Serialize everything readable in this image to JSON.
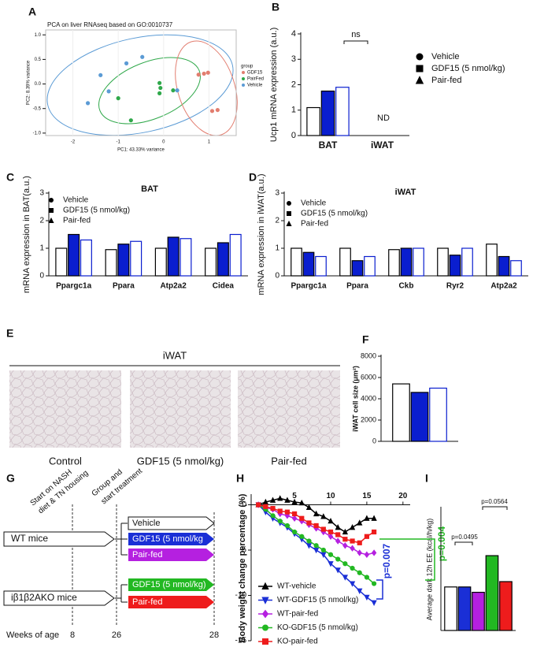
{
  "panel_labels": [
    "A",
    "B",
    "C",
    "D",
    "E",
    "F",
    "G",
    "H",
    "I"
  ],
  "chart_data": [
    {
      "type": "scatter",
      "title": "PCA on liver RNAseq based on GO:0010737",
      "xlabel": "PC1: 43.33% variance",
      "ylabel": "PC2: 8.39% variance",
      "xlim": [
        -2.6,
        1.6
      ],
      "ylim": [
        -1.05,
        1.1
      ],
      "xticks": [
        -2,
        -1,
        0,
        1
      ],
      "yticks": [
        {
          "value": 1,
          "label": "1.0"
        },
        0.5,
        {
          "value": 0,
          "label": "0.0"
        },
        -0.5,
        {
          "value": -1,
          "label": "-1.0"
        }
      ],
      "legend_title": "group",
      "series": [
        {
          "name": "GDF15",
          "color": "#e27d6f",
          "x": [
            0.77,
            0.89,
            0.98,
            1.07,
            1.19
          ],
          "values": [
            0.19,
            0.21,
            0.23,
            -0.55,
            -0.53
          ]
        },
        {
          "name": "PairFed",
          "color": "#2fa84a",
          "x": [
            -0.09,
            -0.07,
            -0.09,
            -1.0,
            -0.72,
            0.21
          ],
          "values": [
            0.02,
            -0.08,
            -0.19,
            -0.29,
            -0.74,
            -0.13
          ]
        },
        {
          "name": "Vehicle",
          "color": "#5b9bd5",
          "x": [
            -0.82,
            -0.47,
            -1.39,
            -1.67,
            -1.21,
            0.3
          ],
          "values": [
            0.42,
            0.55,
            0.18,
            -0.39,
            -0.15,
            -0.13
          ]
        }
      ]
    },
    {
      "type": "bar",
      "ylabel": "Ucp1 mRNA expression (a.u.)",
      "categories": [
        "BAT",
        "iWAT"
      ],
      "ylim": [
        0,
        4
      ],
      "yticks": [
        0,
        1,
        2,
        3,
        4
      ],
      "annotations": [
        "ns",
        "ND"
      ],
      "series": [
        {
          "name": "Vehicle",
          "color": "#ffffff",
          "edgecolor": "#000000",
          "marker": "circle",
          "values": [
            1.1,
            0
          ]
        },
        {
          "name": "GDF15 (5 nmol/kg)",
          "color": "#0a1ecf",
          "edgecolor": "#000000",
          "marker": "square",
          "values": [
            1.75,
            0
          ]
        },
        {
          "name": "Pair-fed",
          "color": "#ffffff",
          "edgecolor": "#0a1ecf",
          "marker": "triangle",
          "values": [
            1.9,
            0
          ]
        }
      ]
    },
    {
      "type": "bar",
      "title": "BAT",
      "ylabel": "mRNA expression in BAT(a.u.)",
      "categories": [
        "Ppargc1a",
        "Ppara",
        "Atp2a2",
        "Cidea"
      ],
      "ylim": [
        0,
        3
      ],
      "yticks": [
        0,
        1,
        2,
        3
      ],
      "series": [
        {
          "name": "Vehicle",
          "color": "#ffffff",
          "edgecolor": "#000000",
          "marker": "circle",
          "values": [
            1.0,
            0.95,
            1.0,
            1.0
          ]
        },
        {
          "name": "GDF15 (5 nmol/kg)",
          "color": "#0a1ecf",
          "edgecolor": "#000000",
          "marker": "square",
          "values": [
            1.5,
            1.15,
            1.4,
            1.2
          ]
        },
        {
          "name": "Pair-fed",
          "color": "#ffffff",
          "edgecolor": "#0a1ecf",
          "marker": "triangle",
          "values": [
            1.3,
            1.25,
            1.35,
            1.5
          ]
        }
      ]
    },
    {
      "type": "bar",
      "title": "iWAT",
      "ylabel": "mRNA expression in iWAT(a.u.)",
      "categories": [
        "Ppargc1a",
        "Ppara",
        "Ckb",
        "Ryr2",
        "Atp2a2"
      ],
      "ylim": [
        0,
        3
      ],
      "yticks": [
        0,
        1,
        2,
        3
      ],
      "series": [
        {
          "name": "Vehicle",
          "color": "#ffffff",
          "edgecolor": "#000000",
          "marker": "circle",
          "values": [
            1.0,
            1.0,
            0.95,
            1.0,
            1.15
          ]
        },
        {
          "name": "GDF15 (5 nmol/kg)",
          "color": "#0a1ecf",
          "edgecolor": "#000000",
          "marker": "square",
          "values": [
            0.85,
            0.55,
            1.0,
            0.75,
            0.7
          ]
        },
        {
          "name": "Pair-fed",
          "color": "#ffffff",
          "edgecolor": "#0a1ecf",
          "marker": "triangle",
          "values": [
            0.7,
            0.7,
            1.0,
            1.0,
            0.55
          ]
        }
      ]
    },
    {
      "type": "bar",
      "ylabel": "iWAT cell size (μm²)",
      "categories": [
        null
      ],
      "ylim": [
        0,
        8000
      ],
      "yticks": [
        0,
        2000,
        4000,
        6000,
        8000
      ],
      "series": [
        {
          "name": null,
          "color": "#ffffff",
          "edgecolor": "#000000",
          "marker": "circle",
          "values": [
            5400
          ]
        },
        {
          "name": null,
          "color": "#0a1ecf",
          "edgecolor": "#000000",
          "marker": "square",
          "values": [
            4600
          ]
        },
        {
          "name": null,
          "color": "#ffffff",
          "edgecolor": "#0a1ecf",
          "marker": "triangle",
          "values": [
            5000
          ]
        }
      ]
    },
    {
      "type": "line",
      "ylabel": "Body weight change percentage (%)",
      "xlim": [
        -1,
        21
      ],
      "ylim": [
        -15,
        1
      ],
      "xticks": [
        5,
        10,
        15,
        20
      ],
      "yticks": [
        0,
        -5,
        -10,
        -15
      ],
      "x": [
        0,
        1,
        2,
        3,
        4,
        5,
        6,
        7,
        8,
        9,
        10,
        11,
        12,
        13,
        14,
        15,
        16
      ],
      "annotations": [
        "p=0.007",
        "p=0.004"
      ],
      "annotation_colors": [
        "#1a2fd6",
        "#22b822"
      ],
      "series": [
        {
          "name": "WT-vehicle",
          "color": "#000000",
          "marker": "triangle",
          "values": [
            0,
            0.3,
            0.5,
            0.7,
            0.5,
            0.3,
            0.2,
            -0.3,
            -1,
            -1.3,
            -1.8,
            -2.5,
            -3,
            -2.5,
            -2,
            -1.5,
            -1.5
          ]
        },
        {
          "name": "WT-GDF15 (5 nmol/kg)",
          "color": "#1a2fd6",
          "marker": "triangle-down",
          "values": [
            0,
            -0.8,
            -1.5,
            -2,
            -2.5,
            -3.2,
            -3.8,
            -4.5,
            -5,
            -5.5,
            -6.5,
            -7.2,
            -8,
            -8.7,
            -9.5,
            -10.2,
            -10.8
          ]
        },
        {
          "name": "WT-pair-fed",
          "color": "#b520e0",
          "marker": "diamond",
          "values": [
            0,
            -0.3,
            -0.5,
            -1,
            -1.2,
            -1.5,
            -1.8,
            -2.2,
            -2.6,
            -3,
            -3.5,
            -4,
            -4.5,
            -4.8,
            -5.3,
            -5.5,
            -5.3
          ]
        },
        {
          "name": "KO-GDF15 (5 nmol/kg)",
          "color": "#22b822",
          "marker": "circle",
          "values": [
            0,
            -0.5,
            -1.2,
            -1.8,
            -2.3,
            -3,
            -3.5,
            -4,
            -4.5,
            -5,
            -5.5,
            -6,
            -6.5,
            -7,
            -7.5,
            -8,
            -8.7
          ]
        },
        {
          "name": "KO-pair-fed",
          "color": "#ee1c1c",
          "marker": "square",
          "values": [
            0,
            -0.2,
            -0.4,
            -0.7,
            -0.8,
            -1,
            -1.5,
            -2,
            -2.3,
            -2.7,
            -3,
            -3.3,
            -3.8,
            -4,
            -4.2,
            -3.5,
            -3
          ]
        }
      ]
    },
    {
      "type": "bar",
      "ylabel": "Average dark 12h EE (kcal/h/kg)",
      "categories": [
        null
      ],
      "ylim": [
        0,
        16
      ],
      "annotations": [
        "p=0.0495",
        "p=0.0564"
      ],
      "series": [
        {
          "name": null,
          "color": "#ffffff",
          "edgecolor": "#000000",
          "marker": "circle",
          "values": [
            5.7
          ]
        },
        {
          "name": null,
          "color": "#1a2fd6",
          "edgecolor": "#000000",
          "marker": "circle",
          "values": [
            5.7
          ]
        },
        {
          "name": null,
          "color": "#b520e0",
          "edgecolor": "#000000",
          "marker": "circle",
          "values": [
            5.0
          ]
        },
        {
          "name": null,
          "color": "#22b822",
          "edgecolor": "#000000",
          "marker": "circle",
          "values": [
            9.8
          ]
        },
        {
          "name": null,
          "color": "#ee1c1c",
          "edgecolor": "#000000",
          "marker": "circle",
          "values": [
            6.4
          ]
        }
      ]
    }
  ],
  "histology": {
    "title": "iWAT",
    "labels": [
      "Control",
      "GDF15 (5 nmol/kg)",
      "Pair-fed"
    ]
  },
  "timeline": {
    "start": [
      "Start on NASH",
      "diet & TN housing"
    ],
    "group": [
      "Group and",
      "start treatment"
    ],
    "wt": "WT mice",
    "ko": "iβ1β2AKO mice",
    "wt_arms": [
      "Vehicle",
      "GDF15 (5 nmol/kg",
      "Pair-fed"
    ],
    "ko_arms": [
      "GDF15 (5 nmol/kg)",
      "Pair-fed"
    ],
    "axis_label": "Weeks of age",
    "weeks": [
      "8",
      "26",
      "28"
    ]
  }
}
